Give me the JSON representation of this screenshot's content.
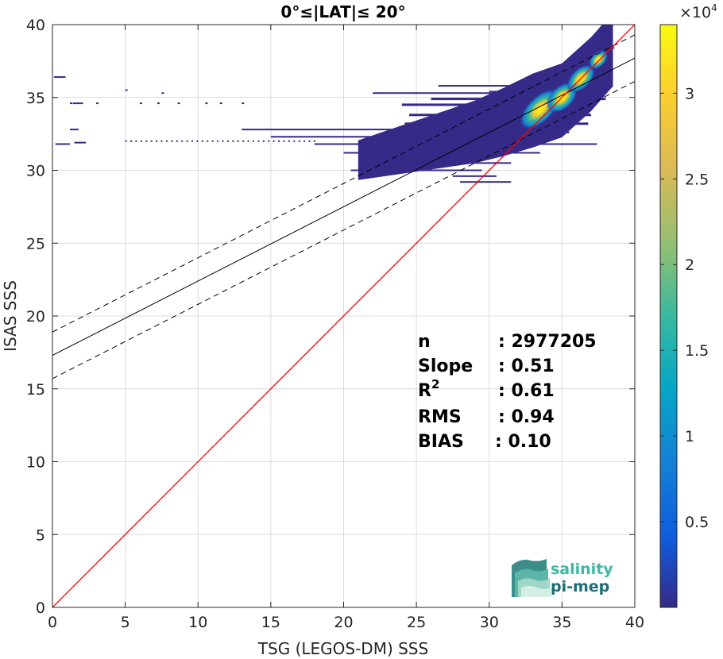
{
  "chart_data": {
    "type": "heatmap",
    "title": "0°≤|LAT|≤ 20°",
    "xlabel": "TSG (LEGOS-DM) SSS",
    "ylabel": "ISAS SSS",
    "xlim": [
      0,
      40
    ],
    "ylim": [
      0,
      40
    ],
    "x_ticks": [
      "0",
      "5",
      "10",
      "15",
      "20",
      "25",
      "30",
      "35",
      "40"
    ],
    "y_ticks": [
      "0",
      "5",
      "10",
      "15",
      "20",
      "25",
      "30",
      "35",
      "40"
    ],
    "grid": true,
    "colormap": "parula",
    "colorbar": {
      "exponent_label": "×10",
      "exponent_power": "4",
      "ticks": [
        "0.5",
        "1",
        "1.5",
        "2",
        "2.5",
        "3"
      ],
      "tick_values": [
        0.5,
        1,
        1.5,
        2,
        2.5,
        3
      ],
      "max": 3.4
    },
    "density_peak": {
      "x": 35,
      "y": 35
    },
    "density_ridge": [
      [
        21,
        30.8
      ],
      [
        25,
        31.8
      ],
      [
        29,
        32.8
      ],
      [
        31,
        33.5
      ],
      [
        33,
        34.3
      ],
      [
        35,
        35
      ],
      [
        37,
        36.8
      ],
      [
        38.5,
        38.5
      ]
    ],
    "lines": {
      "one_to_one": {
        "color": "#ff0000",
        "points": [
          [
            0,
            0
          ],
          [
            40,
            40
          ]
        ]
      },
      "regression": {
        "color": "#000000",
        "style": "solid",
        "points": [
          [
            0,
            17.3
          ],
          [
            40,
            37.7
          ]
        ]
      },
      "upper_bound": {
        "color": "#000000",
        "style": "dashed",
        "points": [
          [
            0,
            18.9
          ],
          [
            40,
            39.3
          ]
        ]
      },
      "lower_bound": {
        "color": "#000000",
        "style": "dashed",
        "points": [
          [
            0,
            15.7
          ],
          [
            40,
            36.1
          ]
        ]
      }
    },
    "stats": [
      {
        "label": "n",
        "sep": ":",
        "value": "2977205"
      },
      {
        "label": "Slope",
        "sep": ":",
        "value": "0.51"
      },
      {
        "label": "R",
        "sup": "2",
        "sep": ":",
        "value": "0.61"
      },
      {
        "label": "RMS",
        "sep": ":",
        "value": "0.94"
      },
      {
        "label": "BIAS",
        "sep": ":",
        "value": "0.10"
      }
    ]
  },
  "logo": {
    "line1": "salinity",
    "line2": "pi-mep"
  },
  "colors": {
    "background_bin": "#352a87",
    "grid": "#dcdcdc",
    "axis": "#262626",
    "logo_line1": "#3cb9a5",
    "logo_line2": "#1a6e75"
  }
}
